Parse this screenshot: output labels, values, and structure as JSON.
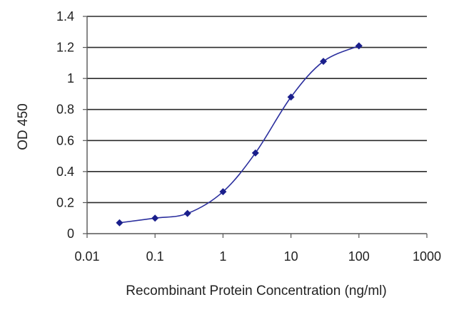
{
  "chart_data": {
    "type": "line",
    "title": "",
    "xlabel": "Recombinant Protein Concentration (ng/ml)",
    "ylabel": "OD 450",
    "xscale": "log",
    "xlim": [
      0.01,
      1000
    ],
    "ylim": [
      0,
      1.4
    ],
    "xticks": [
      0.01,
      0.1,
      1,
      10,
      100,
      1000
    ],
    "xtick_labels": [
      "0.01",
      "0.1",
      "1",
      "10",
      "100",
      "1000"
    ],
    "yticks": [
      0,
      0.2,
      0.4,
      0.6,
      0.8,
      1,
      1.2,
      1.4
    ],
    "ytick_labels": [
      "0",
      "0.2",
      "0.4",
      "0.6",
      "0.8",
      "1",
      "1.2",
      "1.4"
    ],
    "grid": "horizontal",
    "legend": "none",
    "series": [
      {
        "x": [
          0.03,
          0.1,
          0.3,
          1,
          3,
          10,
          30,
          100
        ],
        "y": [
          0.07,
          0.1,
          0.13,
          0.27,
          0.52,
          0.88,
          1.11,
          1.21
        ]
      }
    ],
    "colors": {
      "series": "#2b2f9e",
      "marker": "#1a1f8c",
      "grid": "#2a2a2a",
      "axis": "#555555"
    }
  }
}
